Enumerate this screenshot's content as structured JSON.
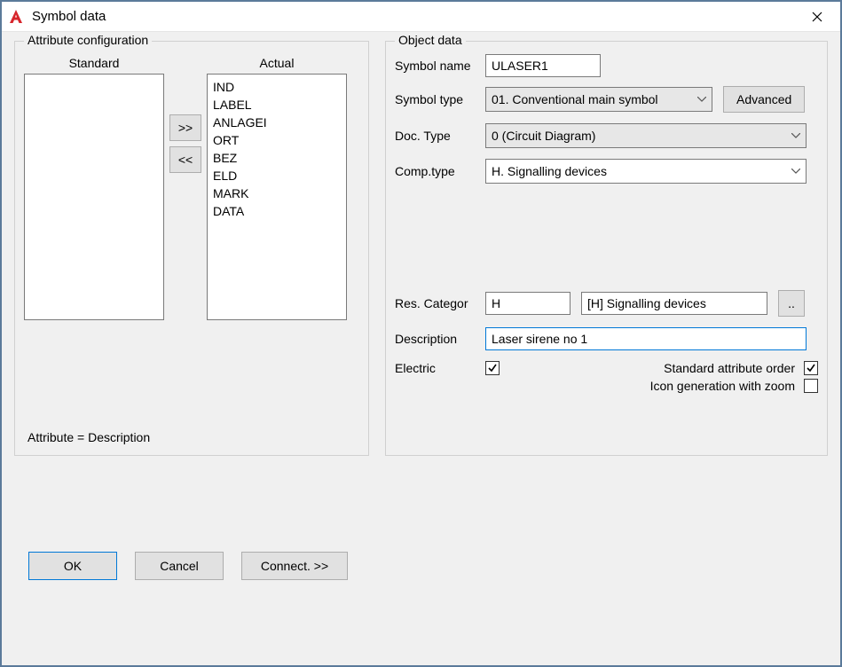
{
  "window": {
    "title": "Symbol data"
  },
  "attr": {
    "group_label": "Attribute configuration",
    "standard_label": "Standard",
    "actual_label": "Actual",
    "move_right": ">>",
    "move_left": "<<",
    "standard_items": [],
    "actual_items": [
      "IND",
      "LABEL",
      "ANLAGEI",
      "ORT",
      "BEZ",
      "ELD",
      "MARK",
      "DATA"
    ],
    "status": "Attribute = Description"
  },
  "obj": {
    "group_label": "Object data",
    "symbol_name_label": "Symbol name",
    "symbol_name_value": "ULASER1",
    "symbol_type_label": "Symbol type",
    "symbol_type_value": "01. Conventional main symbol",
    "advanced_label": "Advanced",
    "doc_type_label": "Doc. Type",
    "doc_type_value": "0 (Circuit Diagram)",
    "comp_type_label": "Comp.type",
    "comp_type_value": "H. Signalling devices",
    "res_categor_label": "Res. Categor",
    "res_categor_code": "H",
    "res_categor_text": "[H] Signalling devices",
    "res_categor_browse": "..",
    "description_label": "Description",
    "description_value": "Laser sirene no 1",
    "electric_label": "Electric",
    "electric_checked": true,
    "std_attr_order_label": "Standard attribute order",
    "std_attr_order_checked": true,
    "icon_gen_label": "Icon generation with zoom",
    "icon_gen_checked": false
  },
  "buttons": {
    "ok": "OK",
    "cancel": "Cancel",
    "connect": "Connect. >>"
  },
  "colors": {
    "window_border": "#5b7a9a",
    "client_bg": "#f0f0f0",
    "button_bg": "#e1e1e1",
    "select_bg": "#e7e7e7",
    "focus_border": "#0078d7",
    "icon_red": "#d7262c"
  }
}
